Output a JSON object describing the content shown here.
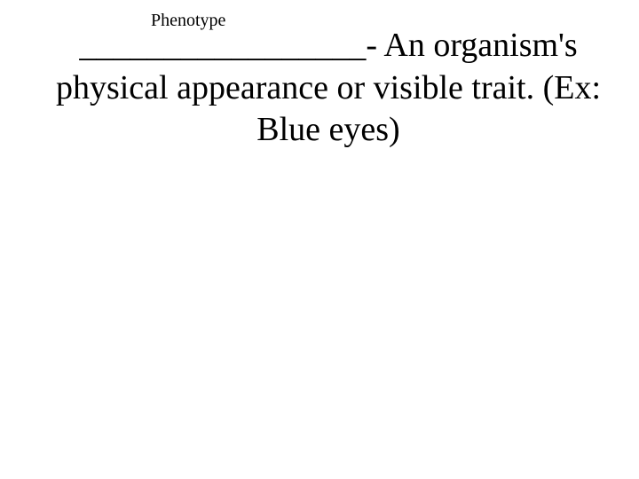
{
  "slide": {
    "answer_label": "Phenotype",
    "definition_text": "_________________- An organism's physical appearance or visible trait. (Ex: Blue eyes)",
    "colors": {
      "background": "#ffffff",
      "text": "#000000"
    },
    "typography": {
      "answer_fontsize": 20,
      "definition_fontsize": 38,
      "font_family": "Times New Roman"
    }
  }
}
